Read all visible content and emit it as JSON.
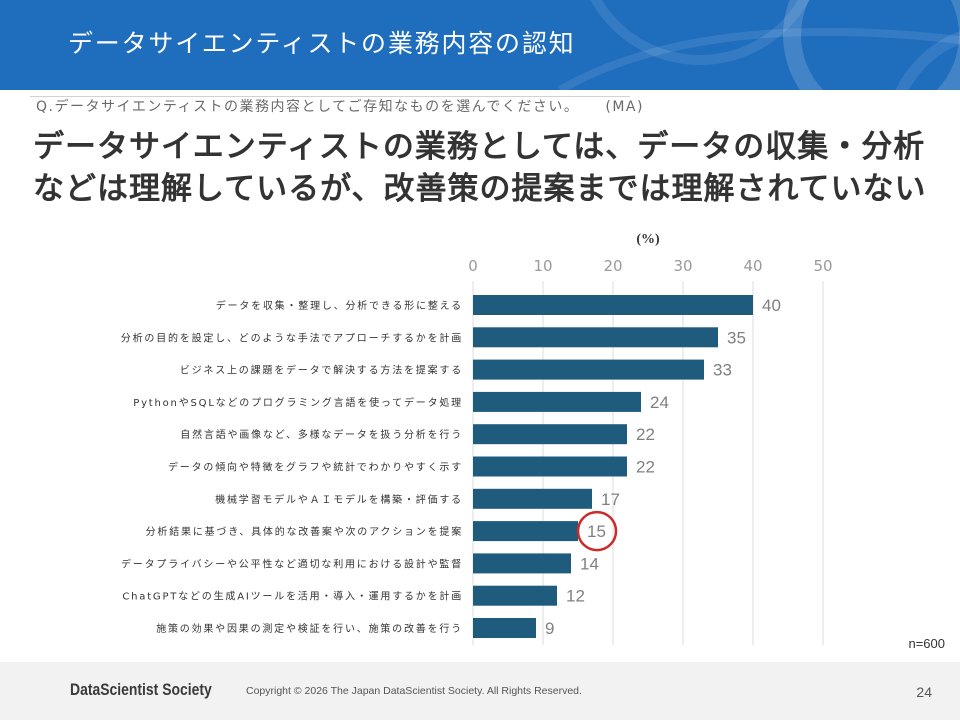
{
  "slide": {
    "title": "データサイエンティストの業務内容の認知",
    "question": "Q.データサイエンティストの業務内容としてご存知なものを選んでください。",
    "question_type": "(MA)",
    "headline": [
      "データサイエンティストの業務としては、データの収集・分析",
      "などは理解しているが、改善策の提案までは理解されていない"
    ],
    "sample_size": "n=600",
    "page_number": "24"
  },
  "footer": {
    "logo_text": "DataScientist Society",
    "copyright": "Copyright © 2026 The Japan DataScientist Society. All Rights Reserved."
  },
  "colors": {
    "header_background": "#1f6dbd",
    "title_text": "#ffffff",
    "headline_text": "#333333",
    "bar": "#1e5b7c",
    "value_label": "#808080",
    "highlight_circle": "#cc2a2a",
    "footer_background": "#f2f2f2"
  },
  "chart_data": {
    "type": "bar",
    "orientation": "horizontal",
    "xlabel": "(%)",
    "xlim": [
      0,
      50
    ],
    "ticks": [
      0,
      10,
      20,
      30,
      40,
      50
    ],
    "grid": true,
    "legend": "none",
    "categories": [
      "データを収集・整理し、分析できる形に整える",
      "分析の目的を設定し、どのような手法でアプローチするかを計画",
      "ビジネス上の課題をデータで解決する方法を提案する",
      "PythonやSQLなどのプログラミング言語を使ってデータ処理",
      "自然言語や画像など、多様なデータを扱う分析を行う",
      "データの傾向や特徴をグラフや統計でわかりやすく示す",
      "機械学習モデルやＡＩモデルを構築・評価する",
      "分析結果に基づき、具体的な改善案や次のアクションを提案",
      "データプライバシーや公平性など適切な利用における設計や監督",
      "ChatGPTなどの生成AIツールを活用・導入・運用するかを計画",
      "施策の効果や因果の測定や検証を行い、施策の改善を行う"
    ],
    "values": [
      40,
      35,
      33,
      24,
      22,
      22,
      17,
      15,
      14,
      12,
      9
    ],
    "annotations": [
      {
        "type": "circle",
        "category_index": 7
      }
    ]
  }
}
